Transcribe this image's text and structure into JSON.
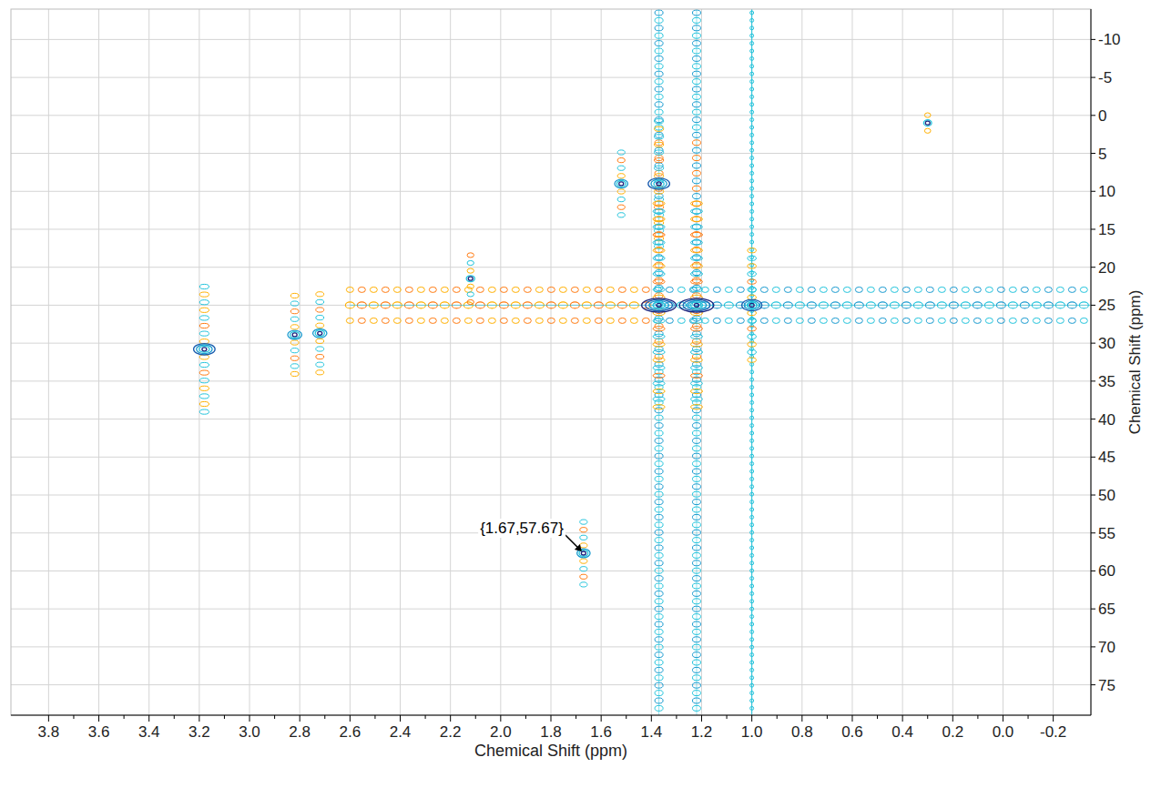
{
  "chart_data": {
    "type": "contour",
    "x_label": "Chemical Shift (ppm)",
    "y_label": "Chemical Shift (ppm)",
    "xlim": [
      3.95,
      -0.35
    ],
    "ylim": [
      -14,
      79
    ],
    "xticks": [
      3.8,
      3.6,
      3.4,
      3.2,
      {
        "value": 3,
        "label": "3.0"
      },
      2.8,
      2.6,
      2.4,
      2.2,
      {
        "value": 2,
        "label": "2.0"
      },
      1.8,
      1.6,
      1.4,
      1.2,
      {
        "value": 1,
        "label": "1.0"
      },
      0.8,
      0.6,
      0.4,
      0.2,
      {
        "value": 0,
        "label": "0.0"
      },
      -0.2
    ],
    "yticks": [
      -10,
      -5,
      0,
      5,
      10,
      15,
      20,
      25,
      30,
      35,
      40,
      45,
      50,
      55,
      60,
      65,
      70,
      75
    ],
    "grid": true,
    "peaks": {
      "x": [
        3.18,
        2.82,
        2.72,
        2.12,
        1.67,
        1.37,
        1.37,
        1.22,
        1.0,
        1.52,
        0.3
      ],
      "y": [
        30.8,
        28.9,
        28.7,
        21.5,
        57.67,
        9,
        25,
        25,
        25,
        9,
        1
      ],
      "intensity": [
        6,
        4,
        4,
        2,
        3,
        6,
        10,
        10,
        5,
        3,
        1
      ]
    },
    "t1_noise_x": [
      1.37,
      1.22,
      1.0
    ],
    "t2_noise": {
      "y": 25,
      "x": [
        2.6,
        -0.35
      ]
    },
    "annotation": {
      "text": "{1.67,57.67}",
      "x": 1.67,
      "y": 57.67
    }
  }
}
